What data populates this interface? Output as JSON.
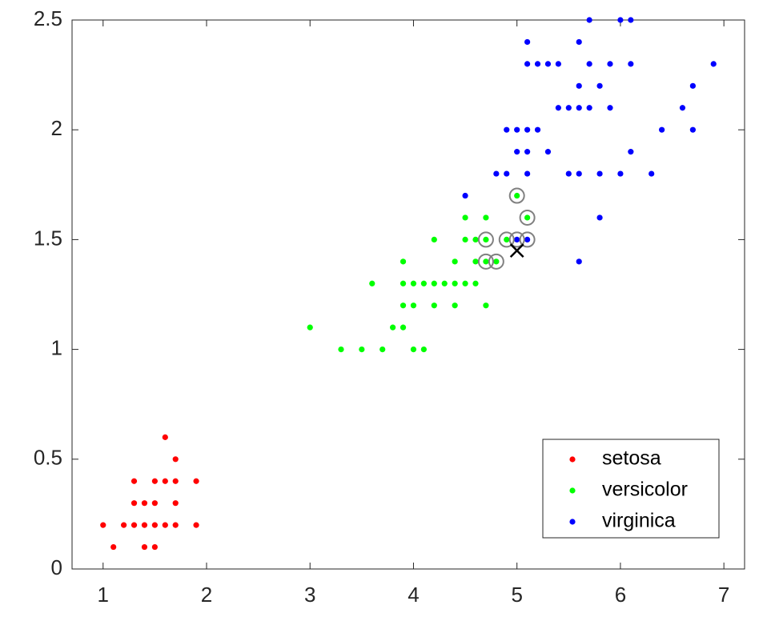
{
  "chart_data": {
    "type": "scatter",
    "xlim": [
      0.7,
      7.2
    ],
    "ylim": [
      0,
      2.5
    ],
    "xticks": [
      1,
      2,
      3,
      4,
      5,
      6,
      7
    ],
    "yticks": [
      0,
      0.5,
      1,
      1.5,
      2,
      2.5
    ],
    "legend": "lower right",
    "series": [
      {
        "name": "setosa",
        "color": "#ff0000",
        "x": [
          1.1,
          1.4,
          1.5,
          1.0,
          1.2,
          1.3,
          1.4,
          1.5,
          1.6,
          1.7,
          1.9,
          1.3,
          1.4,
          1.5,
          1.7,
          1.3,
          1.5,
          1.6,
          1.7,
          1.9,
          1.7,
          1.6
        ],
        "values": [
          0.1,
          0.1,
          0.1,
          0.2,
          0.2,
          0.2,
          0.2,
          0.2,
          0.2,
          0.2,
          0.2,
          0.3,
          0.3,
          0.3,
          0.3,
          0.4,
          0.4,
          0.4,
          0.4,
          0.4,
          0.5,
          0.6
        ]
      },
      {
        "name": "versicolor",
        "color": "#00ff00",
        "x": [
          3.3,
          3.5,
          3.7,
          4.0,
          4.1,
          3.0,
          3.8,
          3.9,
          3.9,
          4.0,
          4.2,
          4.4,
          4.7,
          3.6,
          3.9,
          4.0,
          4.1,
          4.2,
          4.3,
          4.4,
          4.5,
          4.6,
          3.9,
          4.4,
          4.6,
          4.7,
          4.8,
          4.2,
          4.5,
          4.6,
          4.7,
          4.9,
          4.5,
          4.7,
          5.1,
          5.0
        ],
        "values": [
          1.0,
          1.0,
          1.0,
          1.0,
          1.0,
          1.1,
          1.1,
          1.1,
          1.2,
          1.2,
          1.2,
          1.2,
          1.2,
          1.3,
          1.3,
          1.3,
          1.3,
          1.3,
          1.3,
          1.3,
          1.3,
          1.3,
          1.4,
          1.4,
          1.4,
          1.4,
          1.4,
          1.5,
          1.5,
          1.5,
          1.5,
          1.5,
          1.6,
          1.6,
          1.6,
          1.7
        ]
      },
      {
        "name": "virginica",
        "color": "#0000ff",
        "x": [
          5.6,
          5.0,
          5.1,
          5.8,
          4.5,
          4.8,
          4.9,
          5.1,
          5.5,
          5.6,
          5.8,
          6.0,
          6.3,
          5.0,
          5.1,
          5.3,
          6.1,
          4.9,
          5.0,
          5.1,
          5.2,
          6.4,
          6.7,
          5.4,
          5.5,
          5.6,
          5.7,
          5.9,
          6.6,
          5.6,
          5.8,
          6.7,
          5.1,
          5.2,
          5.3,
          5.4,
          5.7,
          5.9,
          6.1,
          6.9,
          5.1,
          5.6,
          5.7,
          6.0,
          6.1
        ],
        "values": [
          1.4,
          1.5,
          1.5,
          1.6,
          1.7,
          1.8,
          1.8,
          1.8,
          1.8,
          1.8,
          1.8,
          1.8,
          1.8,
          1.9,
          1.9,
          1.9,
          1.9,
          2.0,
          2.0,
          2.0,
          2.0,
          2.0,
          2.0,
          2.1,
          2.1,
          2.1,
          2.1,
          2.1,
          2.1,
          2.2,
          2.2,
          2.2,
          2.3,
          2.3,
          2.3,
          2.3,
          2.3,
          2.3,
          2.3,
          2.3,
          2.4,
          2.4,
          2.5,
          2.5,
          2.5
        ]
      }
    ],
    "neighbors": {
      "color": "#808080",
      "x": [
        4.7,
        4.8,
        4.7,
        4.9,
        5.0,
        5.1,
        5.1,
        5.0
      ],
      "values": [
        1.4,
        1.4,
        1.5,
        1.5,
        1.5,
        1.5,
        1.6,
        1.7
      ]
    },
    "query": {
      "color": "#000000",
      "x": 5.0,
      "value": 1.45
    }
  }
}
